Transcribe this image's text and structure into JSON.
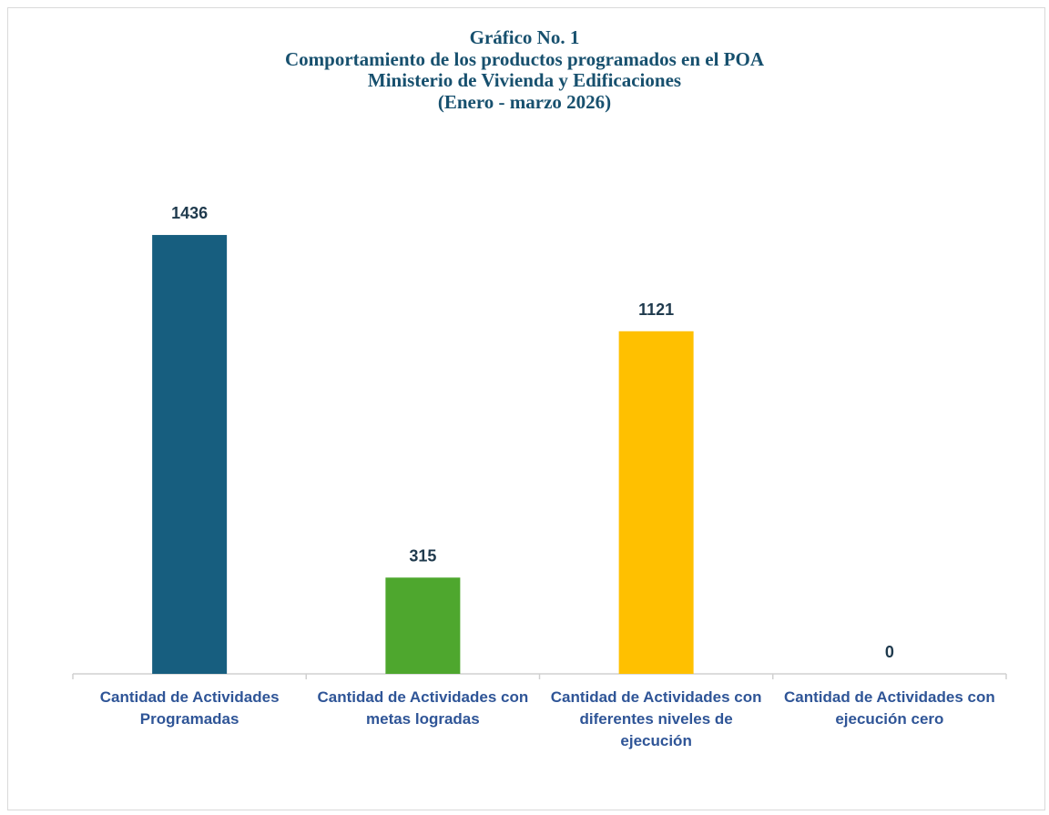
{
  "chart_data": {
    "type": "bar",
    "title": [
      "Gráfico No. 1",
      "Comportamiento de los productos programados en el POA",
      "Ministerio de Vivienda y Edificaciones",
      "(Enero - marzo 2026)"
    ],
    "categories": [
      "Cantidad de Actividades Programadas",
      "Cantidad de Actividades con metas logradas",
      "Cantidad de Actividades con diferentes niveles de ejecución",
      "Cantidad de Actividades con ejecución cero"
    ],
    "values": [
      1436,
      315,
      1121,
      0
    ],
    "colors": [
      "#175e7f",
      "#4ea72e",
      "#ffc000",
      "#7f7f7f"
    ],
    "ylim": [
      0,
      1600
    ]
  }
}
